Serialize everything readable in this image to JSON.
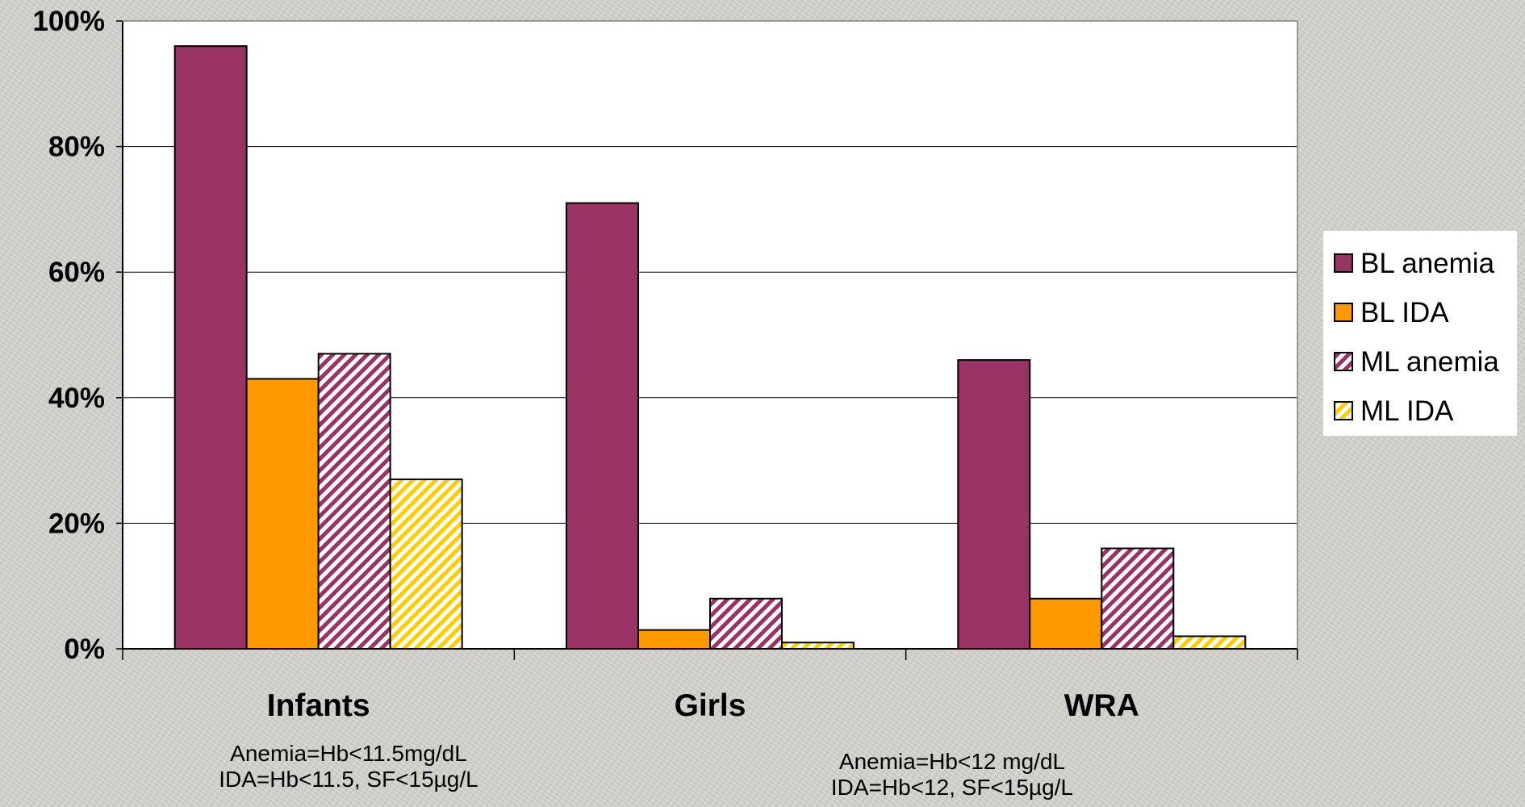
{
  "chart_data": {
    "type": "bar",
    "categories": [
      "Infants",
      "Girls",
      "WRA"
    ],
    "series": [
      {
        "name": "BL anemia",
        "values": [
          96,
          71,
          46
        ],
        "color": "#993366",
        "pattern": "solid"
      },
      {
        "name": "BL IDA",
        "values": [
          43,
          3,
          8
        ],
        "color": "#ff9900",
        "pattern": "solid"
      },
      {
        "name": "ML anemia",
        "values": [
          47,
          8,
          16
        ],
        "color": "#993366",
        "pattern": "diagonal-stripes"
      },
      {
        "name": "ML IDA",
        "values": [
          27,
          1,
          2
        ],
        "color": "#ffcc00",
        "pattern": "diagonal-stripes"
      }
    ],
    "ylim": [
      0,
      100
    ],
    "y_ticks": [
      "0%",
      "20%",
      "40%",
      "60%",
      "80%",
      "100%"
    ],
    "grid": true,
    "legend_position": "right"
  },
  "notes": {
    "infants_line1": "Anemia=Hb<11.5mg/dL",
    "infants_line2": "IDA=Hb<11.5, SF<15µg/L",
    "others_line1": "Anemia=Hb<12 mg/dL",
    "others_line2": "IDA=Hb<12, SF<15µg/L"
  }
}
